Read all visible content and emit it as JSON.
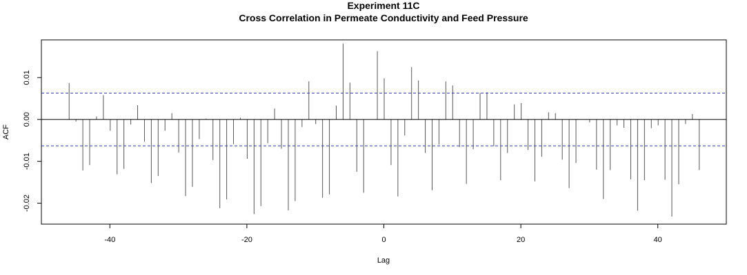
{
  "chart_data": {
    "type": "bar",
    "title": "Experiment  11C",
    "subtitle": "Cross Correlation in Permeate Conductivity and Feed Pressure",
    "xlabel": "Lag",
    "ylabel": "ACF",
    "xlim": [
      -50,
      50
    ],
    "ylim": [
      -0.025,
      0.019
    ],
    "x_ticks": [
      -40,
      -20,
      0,
      20,
      40
    ],
    "y_ticks": [
      -0.02,
      -0.01,
      0.0,
      0.01
    ],
    "x_tick_labels": [
      "-40",
      "-20",
      "0",
      "20",
      "40"
    ],
    "y_tick_labels": [
      "-0.02",
      "-0.01",
      "0.00",
      "0.01"
    ],
    "confidence_limit": 0.0063,
    "grid": false,
    "colors": {
      "bars": "#555555",
      "zero_line": "#000000",
      "ci_line": "#3333aa",
      "frame": "#000000"
    },
    "lags": [
      -46,
      -45,
      -44,
      -43,
      -42,
      -41,
      -40,
      -39,
      -38,
      -37,
      -36,
      -35,
      -34,
      -33,
      -32,
      -31,
      -30,
      -29,
      -28,
      -27,
      -26,
      -25,
      -24,
      -23,
      -22,
      -21,
      -20,
      -19,
      -18,
      -17,
      -16,
      -15,
      -14,
      -13,
      -12,
      -11,
      -10,
      -9,
      -8,
      -7,
      -6,
      -5,
      -4,
      -3,
      -2,
      -1,
      0,
      1,
      2,
      3,
      4,
      5,
      6,
      7,
      8,
      9,
      10,
      11,
      12,
      13,
      14,
      15,
      16,
      17,
      18,
      19,
      20,
      21,
      22,
      23,
      24,
      25,
      26,
      27,
      28,
      29,
      30,
      31,
      32,
      33,
      34,
      35,
      36,
      37,
      38,
      39,
      40,
      41,
      42,
      43,
      44,
      45,
      46
    ],
    "values": [
      0.0087,
      -0.0005,
      -0.0122,
      -0.0109,
      0.0007,
      0.0058,
      -0.0027,
      -0.0131,
      -0.0118,
      -0.0012,
      0.0034,
      -0.0053,
      -0.0152,
      -0.0135,
      -0.0027,
      0.0015,
      -0.0079,
      -0.0183,
      -0.0161,
      -0.0047,
      0.0002,
      -0.0097,
      -0.0212,
      -0.0191,
      -0.0059,
      0.0004,
      -0.0094,
      -0.0226,
      -0.0207,
      -0.0057,
      0.0026,
      -0.007,
      -0.0217,
      -0.0195,
      -0.0018,
      0.0091,
      -0.0011,
      -0.0187,
      -0.0179,
      0.0033,
      0.0181,
      0.0088,
      -0.0125,
      -0.0175,
      0.0,
      0.0163,
      0.0098,
      -0.0109,
      -0.0184,
      -0.0038,
      0.0125,
      0.0093,
      -0.008,
      -0.0169,
      -0.006,
      0.0091,
      0.0081,
      -0.0066,
      -0.0154,
      -0.0071,
      0.0063,
      0.0065,
      -0.0064,
      -0.0145,
      -0.008,
      0.0036,
      0.0039,
      -0.0073,
      -0.0148,
      -0.0089,
      0.0017,
      0.0015,
      -0.0096,
      -0.0164,
      -0.0104,
      0.0,
      -0.0007,
      -0.012,
      -0.019,
      -0.0121,
      -0.0014,
      -0.002,
      -0.0143,
      -0.0218,
      -0.0145,
      -0.0021,
      -0.0014,
      -0.0144,
      -0.0232,
      -0.0155,
      -0.0011,
      0.0013,
      -0.0121
    ]
  }
}
